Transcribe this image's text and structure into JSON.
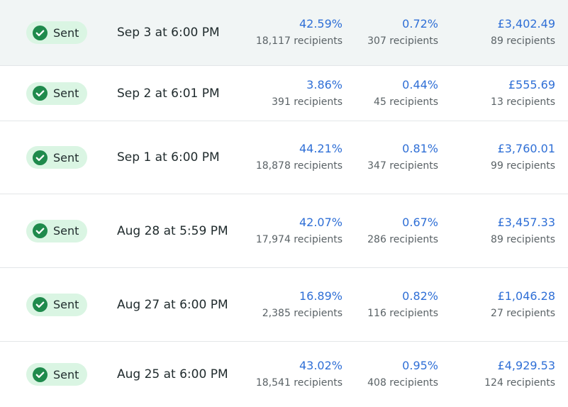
{
  "table": {
    "rows": [
      {
        "status": "Sent",
        "date": "Sep 3 at 6:00 PM",
        "metrics": [
          {
            "value": "42.59%",
            "recipients": "18,117 recipients"
          },
          {
            "value": "0.72%",
            "recipients": "307 recipients"
          },
          {
            "value": "£3,402.49",
            "recipients": "89 recipients"
          }
        ]
      },
      {
        "status": "Sent",
        "date": "Sep 2 at 6:01 PM",
        "metrics": [
          {
            "value": "3.86%",
            "recipients": "391 recipients"
          },
          {
            "value": "0.44%",
            "recipients": "45 recipients"
          },
          {
            "value": "£555.69",
            "recipients": "13 recipients"
          }
        ]
      },
      {
        "status": "Sent",
        "date": "Sep 1 at 6:00 PM",
        "metrics": [
          {
            "value": "44.21%",
            "recipients": "18,878 recipients"
          },
          {
            "value": "0.81%",
            "recipients": "347 recipients"
          },
          {
            "value": "£3,760.01",
            "recipients": "99 recipients"
          }
        ]
      },
      {
        "status": "Sent",
        "date": "Aug 28 at 5:59 PM",
        "metrics": [
          {
            "value": "42.07%",
            "recipients": "17,974 recipients"
          },
          {
            "value": "0.67%",
            "recipients": "286 recipients"
          },
          {
            "value": "£3,457.33",
            "recipients": "89 recipients"
          }
        ]
      },
      {
        "status": "Sent",
        "date": "Aug 27 at 6:00 PM",
        "metrics": [
          {
            "value": "16.89%",
            "recipients": "2,385 recipients"
          },
          {
            "value": "0.82%",
            "recipients": "116 recipients"
          },
          {
            "value": "£1,046.28",
            "recipients": "27 recipients"
          }
        ]
      },
      {
        "status": "Sent",
        "date": "Aug 25 at 6:00 PM",
        "metrics": [
          {
            "value": "43.02%",
            "recipients": "18,541 recipients"
          },
          {
            "value": "0.95%",
            "recipients": "408 recipients"
          },
          {
            "value": "£4,929.53",
            "recipients": "124 recipients"
          }
        ]
      }
    ]
  }
}
